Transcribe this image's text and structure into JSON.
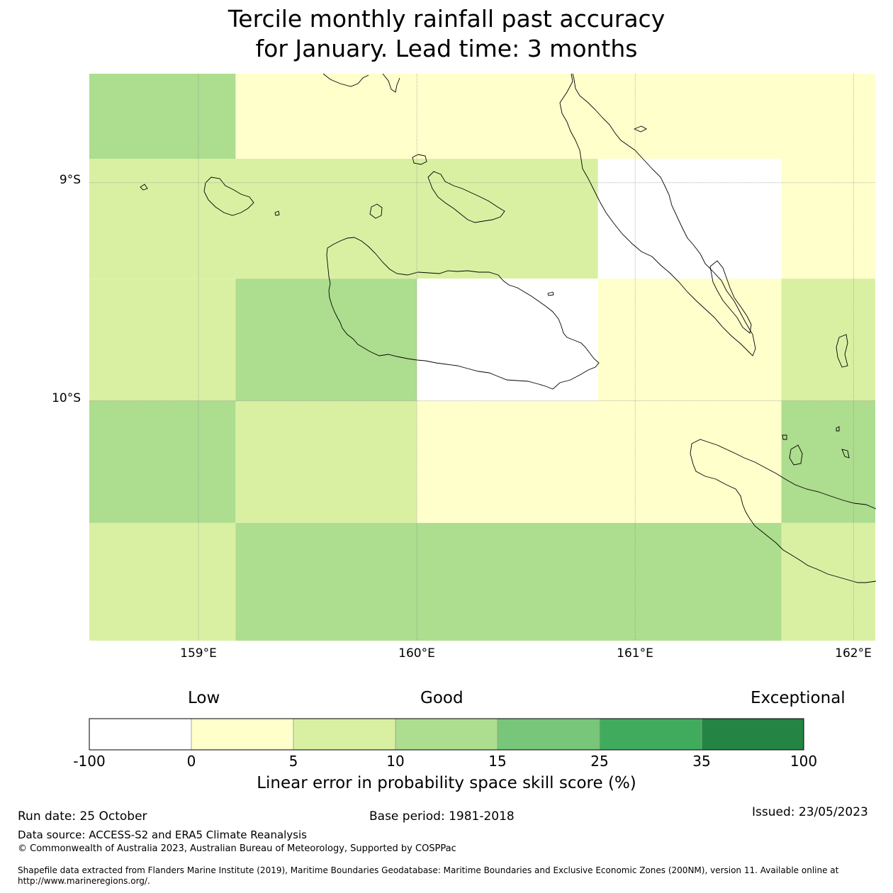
{
  "title": {
    "line1": "Tercile monthly rainfall past accuracy",
    "line2": "for January. Lead time: 3 months"
  },
  "map": {
    "lon_range": [
      158.5,
      162.1
    ],
    "lat_range": [
      -11.1,
      -8.5
    ],
    "lat_ticks": [
      {
        "value": -9,
        "label": "9°S"
      },
      {
        "value": -10,
        "label": "10°S"
      }
    ],
    "lon_ticks": [
      {
        "value": 159,
        "label": "159°E"
      },
      {
        "value": 160,
        "label": "160°E"
      },
      {
        "value": 161,
        "label": "161°E"
      },
      {
        "value": 162,
        "label": "162°E"
      }
    ],
    "grid_cells": [
      {
        "lon": [
          158.5,
          159.17
        ],
        "lat": [
          -8.89,
          -8.5
        ],
        "category": 10
      },
      {
        "lon": [
          159.17,
          162.1
        ],
        "lat": [
          -8.89,
          -8.5
        ],
        "category": 0
      },
      {
        "lon": [
          158.5,
          160.83
        ],
        "lat": [
          -9.44,
          -8.89
        ],
        "category": 5
      },
      {
        "lon": [
          160.83,
          161.67
        ],
        "lat": [
          -9.44,
          -8.89
        ],
        "category": -100
      },
      {
        "lon": [
          161.67,
          162.1
        ],
        "lat": [
          -9.44,
          -8.89
        ],
        "category": 0
      },
      {
        "lon": [
          158.5,
          159.17
        ],
        "lat": [
          -10.0,
          -9.44
        ],
        "category": 5
      },
      {
        "lon": [
          159.17,
          160.0
        ],
        "lat": [
          -10.0,
          -9.44
        ],
        "category": 10
      },
      {
        "lon": [
          160.0,
          160.83
        ],
        "lat": [
          -10.0,
          -9.44
        ],
        "category": -100
      },
      {
        "lon": [
          160.83,
          161.67
        ],
        "lat": [
          -10.0,
          -9.44
        ],
        "category": 0
      },
      {
        "lon": [
          161.67,
          162.1
        ],
        "lat": [
          -10.0,
          -9.44
        ],
        "category": 5
      },
      {
        "lon": [
          158.5,
          159.17
        ],
        "lat": [
          -10.56,
          -10.0
        ],
        "category": 10
      },
      {
        "lon": [
          159.17,
          160.0
        ],
        "lat": [
          -10.56,
          -10.0
        ],
        "category": 5
      },
      {
        "lon": [
          160.0,
          161.67
        ],
        "lat": [
          -10.56,
          -10.0
        ],
        "category": 0
      },
      {
        "lon": [
          161.67,
          162.1
        ],
        "lat": [
          -10.56,
          -10.0
        ],
        "category": 10
      },
      {
        "lon": [
          158.5,
          159.17
        ],
        "lat": [
          -11.1,
          -10.56
        ],
        "category": 5
      },
      {
        "lon": [
          159.17,
          161.67
        ],
        "lat": [
          -11.1,
          -10.56
        ],
        "category": 10
      },
      {
        "lon": [
          161.67,
          162.1
        ],
        "lat": [
          -11.1,
          -10.56
        ],
        "category": 5
      }
    ]
  },
  "colorbar": {
    "qualitative_labels": {
      "low": "Low",
      "good": "Good",
      "exceptional": "Exceptional"
    },
    "tick_labels": [
      "-100",
      "0",
      "5",
      "10",
      "15",
      "25",
      "35",
      "100"
    ],
    "bins": [
      {
        "from": -100,
        "to": 0,
        "color": "#ffffff"
      },
      {
        "from": 0,
        "to": 5,
        "color": "#ffffcc"
      },
      {
        "from": 5,
        "to": 10,
        "color": "#d9f0a3"
      },
      {
        "from": 10,
        "to": 15,
        "color": "#addd8e"
      },
      {
        "from": 15,
        "to": 25,
        "color": "#78c679"
      },
      {
        "from": 25,
        "to": 35,
        "color": "#41ab5d"
      },
      {
        "from": 35,
        "to": 100,
        "color": "#238443"
      }
    ],
    "title": "Linear error in probability space skill score (%)"
  },
  "footer": {
    "run_date": "Run date: 25 October",
    "base_period": "Base period: 1981-2018",
    "issued": "Issued: 23/05/2023",
    "data_source": "Data source: ACCESS-S2 and ERA5 Climate Reanalysis",
    "copyright": "© Commonwealth of Australia 2023, Australian Bureau of Meteorology, Supported by COSPPac",
    "shapefile_line1": "Shapefile data extracted from Flanders Marine Institute (2019), Maritime Boundaries Geodatabase: Maritime Boundaries and Exclusive Economic Zones (200NM), version 11. Available online at",
    "shapefile_line2": "http://www.marineregions.org/."
  }
}
